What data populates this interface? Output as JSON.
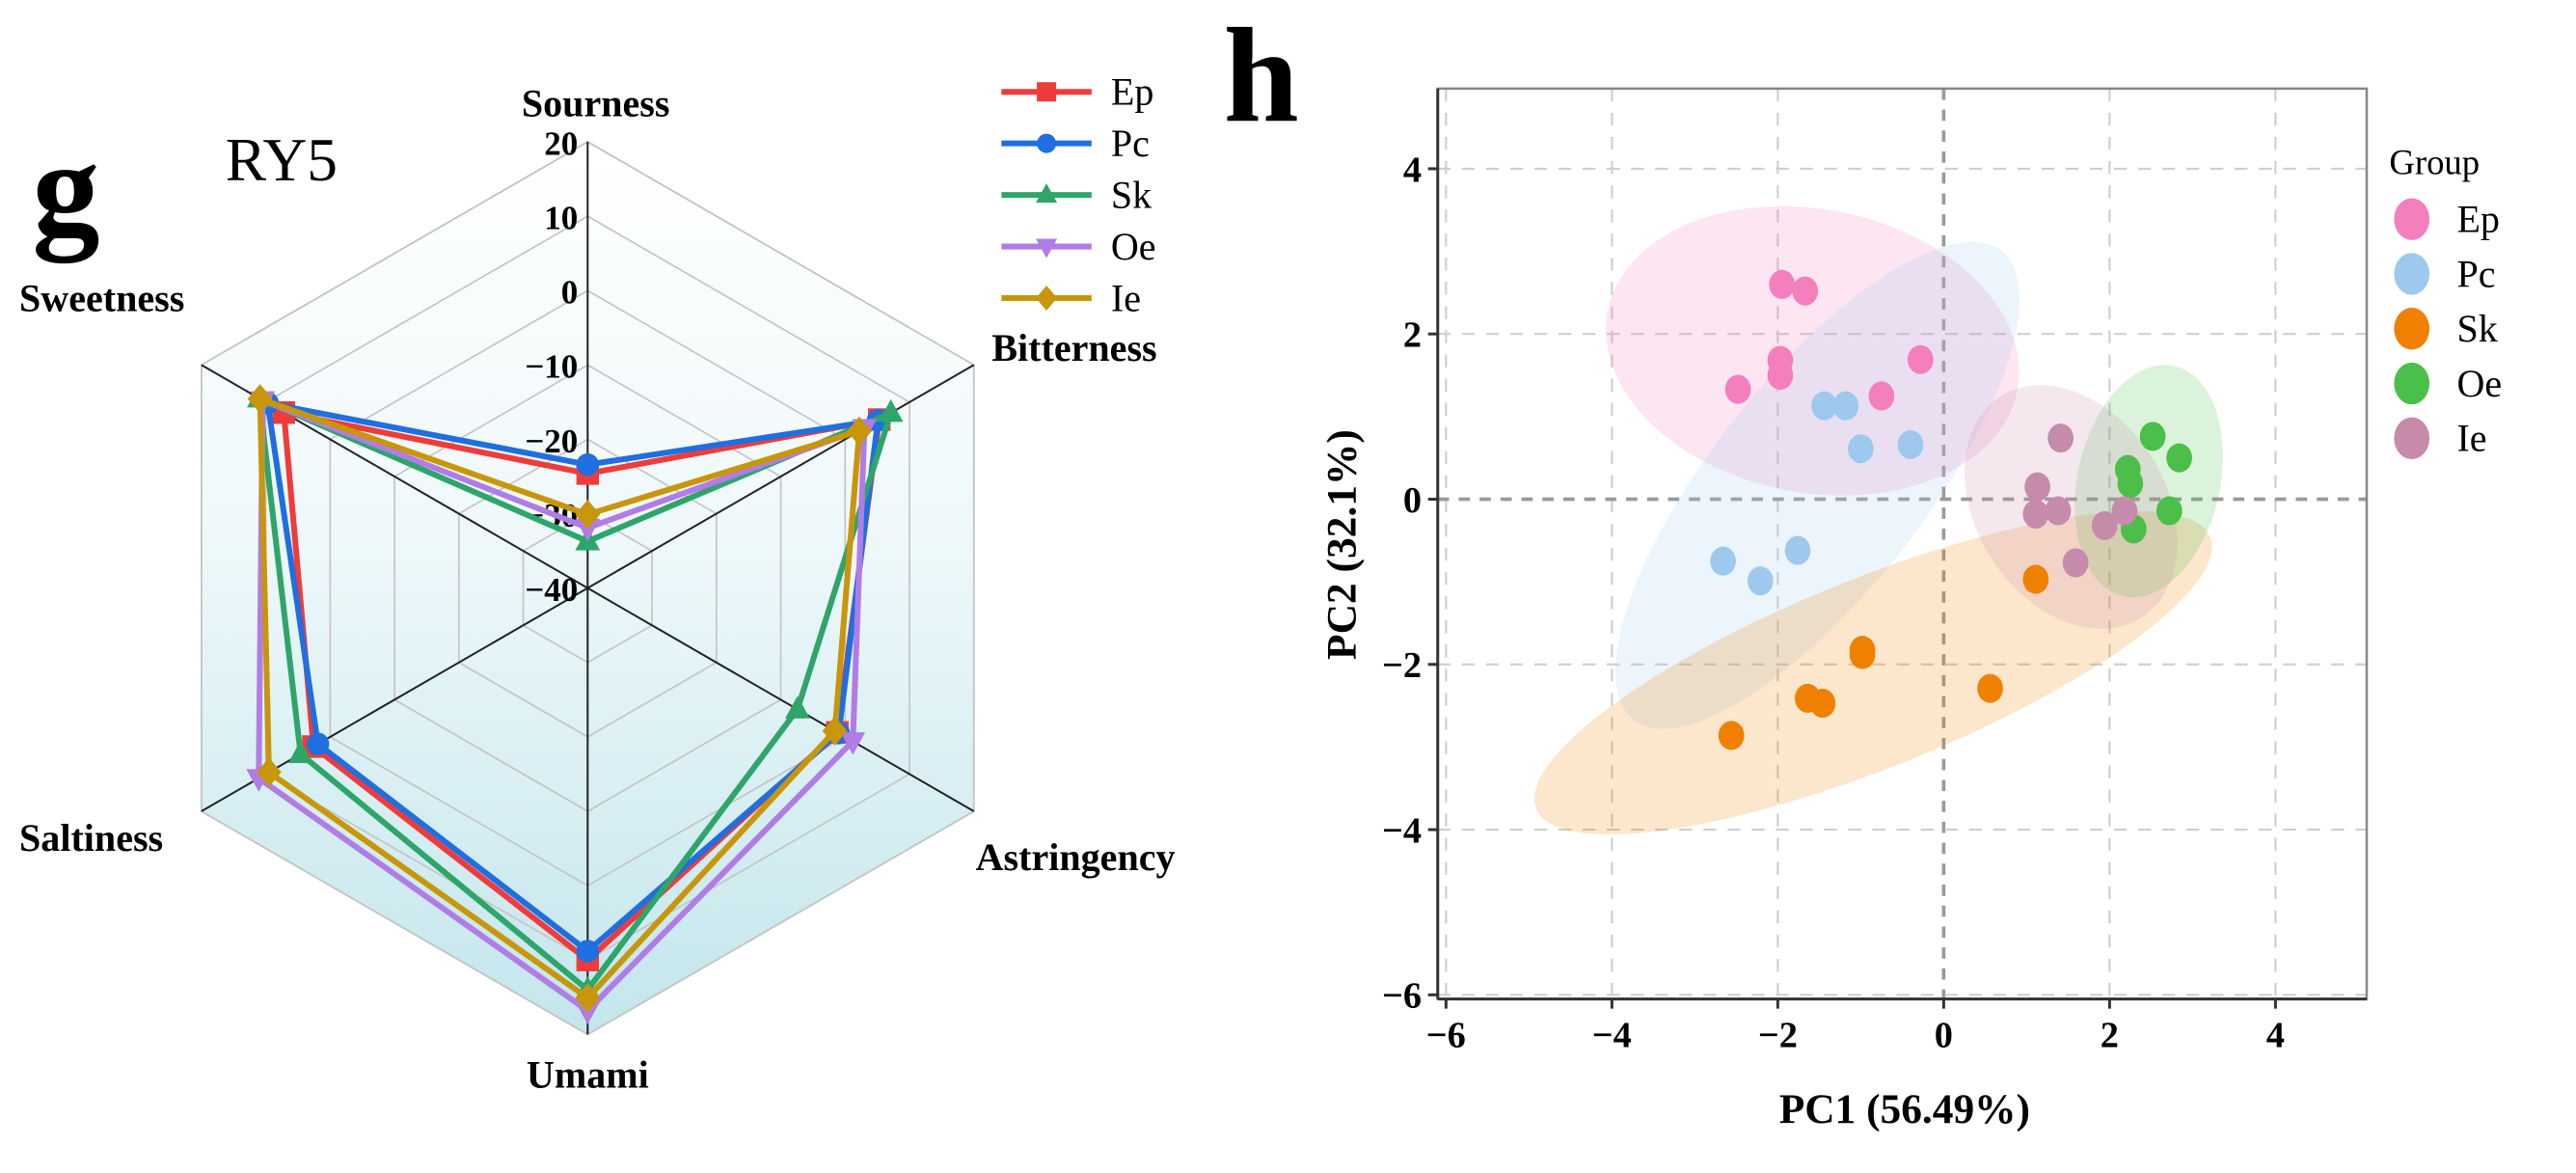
{
  "panels": {
    "left_label": "g",
    "right_label": "h"
  },
  "chart_data": [
    {
      "type": "radar",
      "title": "RY5",
      "axes": [
        "Sourness",
        "Bitterness",
        "Astringency",
        "Umami",
        "Saltiness",
        "Sweetness"
      ],
      "rlim": [
        -40,
        20
      ],
      "ticks": [
        20,
        10,
        0,
        -10,
        -20,
        -30,
        -40
      ],
      "tick_labels": [
        "20",
        "10",
        "0",
        "−10",
        "−20",
        "−30",
        "−40"
      ],
      "legend": "top-right",
      "series": [
        {
          "name": "Ep",
          "color": "#ef3b3b",
          "marker": "square",
          "values": [
            -24.6,
            5.3,
            -1.2,
            10.0,
            2.6,
            7.2
          ]
        },
        {
          "name": "Pc",
          "color": "#1f6fe0",
          "marker": "circle",
          "values": [
            -23.4,
            5.1,
            -1.0,
            8.8,
            1.9,
            9.7
          ]
        },
        {
          "name": "Sk",
          "color": "#2ea56a",
          "marker": "triangle-up",
          "values": [
            -33.7,
            7.1,
            -7.4,
            14.0,
            4.6,
            11.0
          ]
        },
        {
          "name": "Oe",
          "color": "#b07ce6",
          "marker": "triangle-down",
          "values": [
            -31.9,
            3.0,
            1.2,
            16.8,
            11.1,
            10.5
          ]
        },
        {
          "name": "Ie",
          "color": "#c8960a",
          "marker": "diamond",
          "values": [
            -30.1,
            2.2,
            -1.6,
            15.1,
            9.5,
            10.9
          ]
        }
      ]
    },
    {
      "type": "scatter",
      "xlabel": "PC1 (56.49%)",
      "ylabel": "PC2 (32.1%)",
      "xlim": [
        -6.1,
        5.1
      ],
      "ylim": [
        -6.05,
        4.97
      ],
      "xticks": [
        -6,
        -4,
        -2,
        0,
        2,
        4
      ],
      "yticks": [
        -6,
        -4,
        -2,
        0,
        2,
        4
      ],
      "xtick_labels": [
        "−6",
        "−4",
        "−2",
        "0",
        "2",
        "4"
      ],
      "ytick_labels": [
        "−6",
        "−4",
        "−2",
        "0",
        "2",
        "4"
      ],
      "grid": true,
      "legend_title": "Group",
      "legend": "right",
      "confidence_ellipses": true,
      "series": [
        {
          "name": "Ep",
          "color": "#f47fbd",
          "points": [
            [
              -1.95,
              2.6
            ],
            [
              -1.67,
              2.52
            ],
            [
              -2.48,
              1.33
            ],
            [
              -1.97,
              1.68
            ],
            [
              -1.97,
              1.5
            ],
            [
              -0.75,
              1.25
            ],
            [
              -0.28,
              1.69
            ]
          ]
        },
        {
          "name": "Pc",
          "color": "#9ec9ef",
          "points": [
            [
              -1.44,
              1.13
            ],
            [
              -1.18,
              1.13
            ],
            [
              -1.0,
              0.61
            ],
            [
              -0.4,
              0.66
            ],
            [
              -2.66,
              -0.75
            ],
            [
              -2.21,
              -0.99
            ],
            [
              -1.76,
              -0.62
            ]
          ]
        },
        {
          "name": "Sk",
          "color": "#f08000",
          "points": [
            [
              1.11,
              -0.97
            ],
            [
              -0.98,
              -1.83
            ],
            [
              -0.98,
              -1.88
            ],
            [
              -1.64,
              -2.41
            ],
            [
              -1.46,
              -2.47
            ],
            [
              0.56,
              -2.29
            ],
            [
              -2.56,
              -2.86
            ]
          ]
        },
        {
          "name": "Oe",
          "color": "#4cbf4a",
          "points": [
            [
              2.52,
              0.76
            ],
            [
              2.84,
              0.5
            ],
            [
              2.22,
              0.36
            ],
            [
              2.25,
              0.19
            ],
            [
              2.72,
              -0.14
            ],
            [
              2.29,
              -0.36
            ]
          ]
        },
        {
          "name": "Ie",
          "color": "#c68aab",
          "points": [
            [
              1.41,
              0.74
            ],
            [
              1.13,
              0.15
            ],
            [
              1.11,
              -0.18
            ],
            [
              1.38,
              -0.14
            ],
            [
              1.94,
              -0.32
            ],
            [
              2.18,
              -0.14
            ],
            [
              1.59,
              -0.77
            ]
          ]
        }
      ]
    }
  ]
}
